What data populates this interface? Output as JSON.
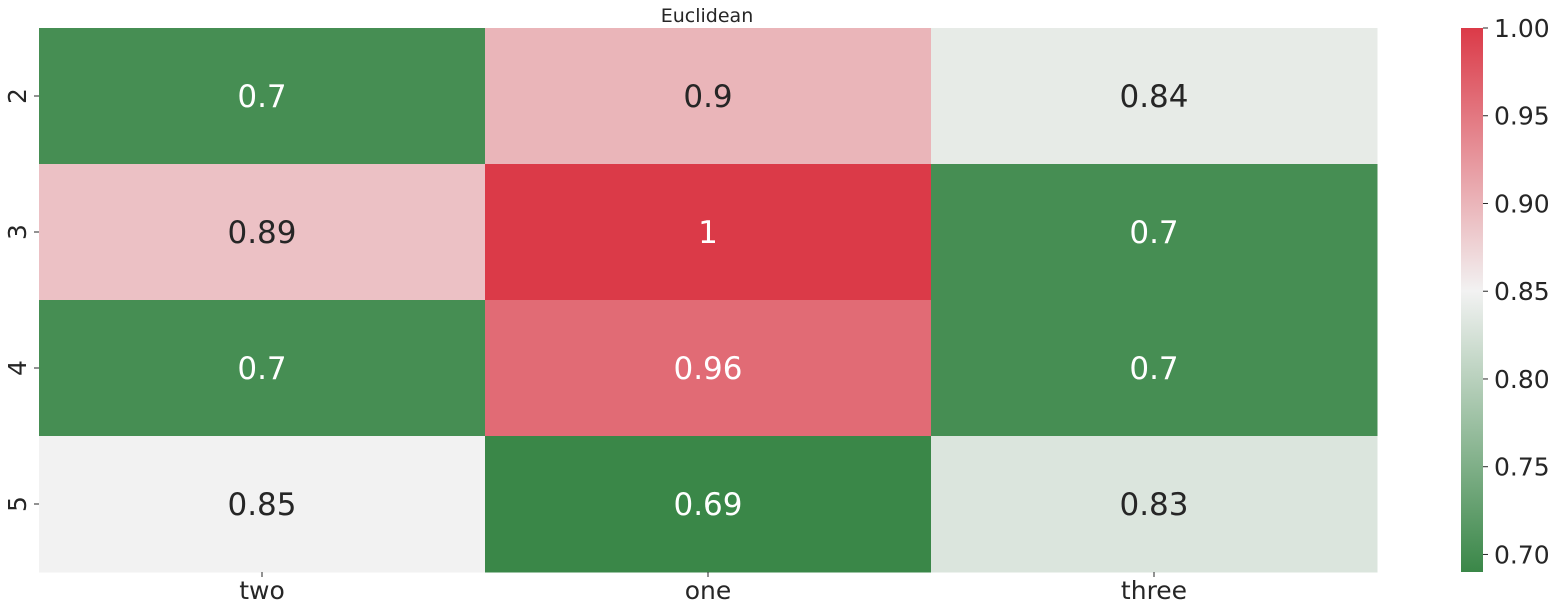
{
  "chart_data": {
    "type": "heatmap",
    "title": "Euclidean",
    "xlabel": "",
    "ylabel": "",
    "x_categories": [
      "two",
      "one",
      "three"
    ],
    "y_categories": [
      "2",
      "3",
      "4",
      "5"
    ],
    "values": [
      [
        0.7,
        0.9,
        0.84
      ],
      [
        0.89,
        1,
        0.7
      ],
      [
        0.7,
        0.96,
        0.7
      ],
      [
        0.85,
        0.69,
        0.83
      ]
    ],
    "cell_labels": [
      [
        "0.7",
        "0.9",
        "0.84"
      ],
      [
        "0.89",
        "1",
        "0.7"
      ],
      [
        "0.7",
        "0.96",
        "0.7"
      ],
      [
        "0.85",
        "0.69",
        "0.83"
      ]
    ],
    "colorbar": {
      "min": 0.69,
      "max": 1.0,
      "ticks": [
        0.7,
        0.75,
        0.8,
        0.85,
        0.9,
        0.95,
        1.0
      ],
      "tick_labels": [
        "0.70",
        "0.75",
        "0.80",
        "0.85",
        "0.90",
        "0.95",
        "1.00"
      ],
      "colormap": [
        "#3a8748",
        "#f2f2f2",
        "#db3a48"
      ],
      "center": 0.85
    },
    "grid": false,
    "legend": "colorbar-right"
  }
}
